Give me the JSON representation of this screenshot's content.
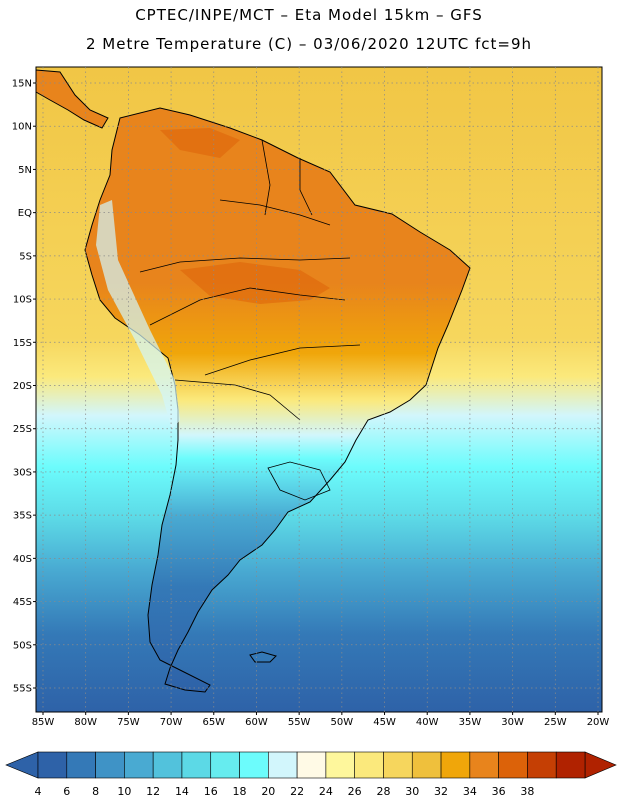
{
  "header": {
    "line1": "CPTEC/INPE/MCT –  Eta Model 15km – GFS",
    "line2": "2 Metre Temperature (C) – 03/06/2020 12UTC fct=9h"
  },
  "map": {
    "lat_labels": [
      "15N",
      "10N",
      "5N",
      "EQ",
      "5S",
      "10S",
      "15S",
      "20S",
      "25S",
      "30S",
      "35S",
      "40S",
      "45S",
      "50S",
      "55S"
    ],
    "lon_labels": [
      "85W",
      "80W",
      "75W",
      "70W",
      "65W",
      "60W",
      "55W",
      "50W",
      "45W",
      "40W",
      "35W",
      "30W",
      "25W",
      "20W"
    ]
  },
  "colorbar": {
    "levels": [
      "4",
      "6",
      "8",
      "10",
      "12",
      "14",
      "16",
      "18",
      "20",
      "22",
      "24",
      "26",
      "28",
      "30",
      "32",
      "34",
      "36",
      "38"
    ],
    "colors": [
      "#2e62a8",
      "#3479b7",
      "#3f93c6",
      "#49aad2",
      "#52c2dc",
      "#5cd9e6",
      "#66ecef",
      "#6cfcfc",
      "#d2f6fc",
      "#fffae6",
      "#fef79c",
      "#fbe97c",
      "#f6d65d",
      "#efc03c",
      "#f0a60a",
      "#e8841c",
      "#dc6209",
      "#c53f04",
      "#b02200"
    ],
    "low_arrow_color": "#2e62a8",
    "high_arrow_color": "#b02200"
  }
}
